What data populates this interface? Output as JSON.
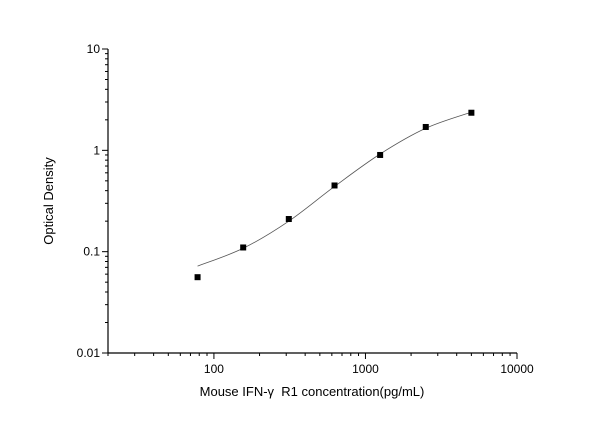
{
  "chart_data": {
    "type": "scatter",
    "title": "",
    "xlabel": "Mouse IFN-γ  R1 concentration(pg/mL)",
    "ylabel": "Optical Density",
    "xscale": "log",
    "yscale": "log",
    "xlim": [
      20,
      10000
    ],
    "ylim": [
      0.01,
      10
    ],
    "xticks": [
      "100",
      "1000",
      "10000"
    ],
    "yticks": [
      "0.01",
      "0.1",
      "1",
      "10"
    ],
    "grid": false,
    "legend": "none",
    "marker_color": "#000000",
    "line_color": "#555555",
    "points": {
      "x": [
        78,
        156,
        312,
        625,
        1250,
        2500,
        5000
      ],
      "y": [
        0.056,
        0.11,
        0.21,
        0.45,
        0.9,
        1.7,
        2.35
      ]
    },
    "fit_curve": {
      "x": [
        78,
        156,
        312,
        625,
        1250,
        2500,
        5000
      ],
      "y": [
        0.072,
        0.108,
        0.2,
        0.44,
        0.92,
        1.65,
        2.38
      ]
    }
  }
}
